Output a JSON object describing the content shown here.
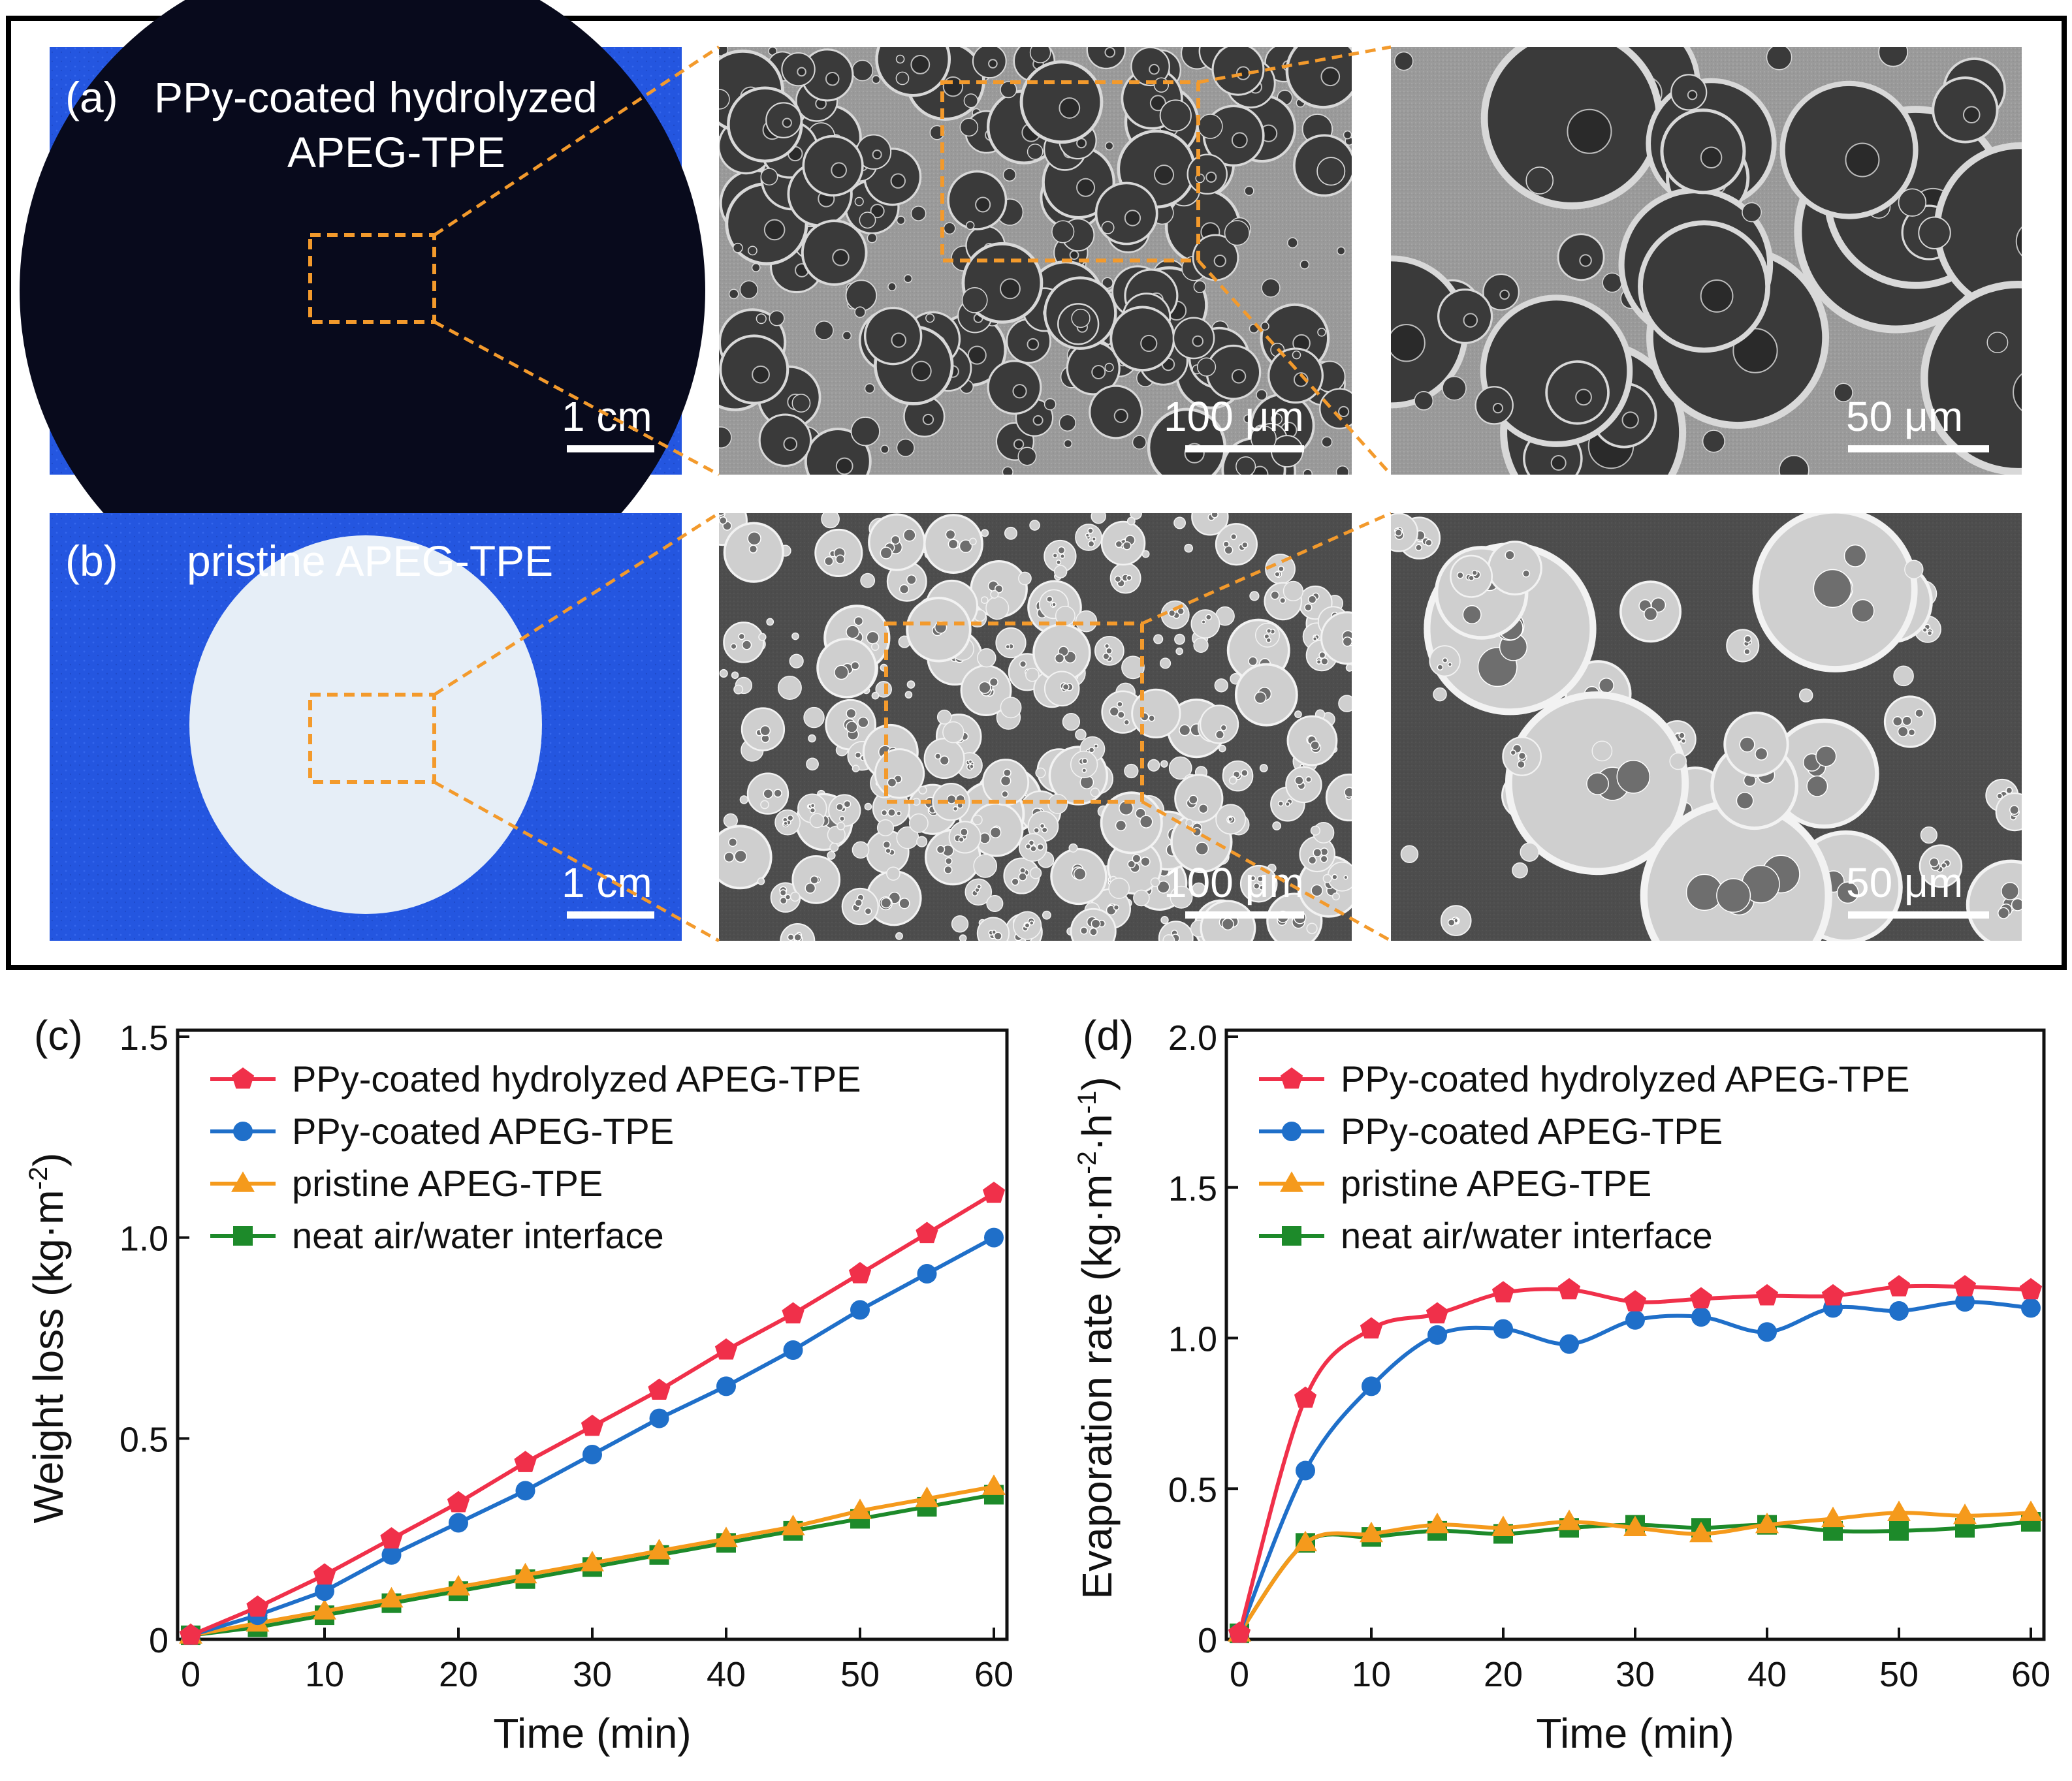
{
  "top_panels": {
    "a": {
      "label": "(a)",
      "title_line1": "PPy-coated hydrolyzed",
      "title_line2": "APEG-TPE",
      "scales": [
        "1 cm",
        "100 μm",
        "50 μm"
      ]
    },
    "b": {
      "label": "(b)",
      "title": "pristine APEG-TPE",
      "scales": [
        "1 cm",
        "100 μm",
        "50 μm"
      ]
    }
  },
  "colors": {
    "blue_bg": "#2456e0",
    "dark_disk": "#080a1c",
    "light_disk": "#e6eef7",
    "zoom": "#f39a2c",
    "sem_light": "#9e9e9e",
    "sem_dark": "#4a4a4a",
    "red": "#f0304a",
    "blue": "#1f6fc9",
    "orange": "#f59a1c",
    "green": "#1d8a2a"
  },
  "chart_data": [
    {
      "panel": "(c)",
      "type": "line",
      "xlabel": "Time (min)",
      "ylabel_main": "Weight loss (kg·m",
      "ylabel_sup": "-2",
      "ylabel_end": ")",
      "xlim": [
        0,
        60
      ],
      "ylim": [
        0,
        1.5
      ],
      "xticks": [
        0,
        10,
        20,
        30,
        40,
        50,
        60
      ],
      "yticks": [
        0,
        0.5,
        1.0,
        1.5
      ],
      "ytick_labels": [
        "0",
        "0.5",
        "1.0",
        "1.5"
      ],
      "x": [
        0,
        5,
        10,
        15,
        20,
        25,
        30,
        35,
        40,
        45,
        50,
        55,
        60
      ],
      "legend_position": "top-left",
      "series": [
        {
          "name": "PPy-coated hydrolyzed APEG-TPE",
          "color": "red",
          "marker": "pentagon",
          "values": [
            0.01,
            0.08,
            0.16,
            0.25,
            0.34,
            0.44,
            0.53,
            0.62,
            0.72,
            0.81,
            0.91,
            1.01,
            1.11
          ]
        },
        {
          "name": "PPy-coated APEG-TPE",
          "color": "blue",
          "marker": "circle",
          "values": [
            0.01,
            0.06,
            0.12,
            0.21,
            0.29,
            0.37,
            0.46,
            0.55,
            0.63,
            0.72,
            0.82,
            0.91,
            1.0
          ]
        },
        {
          "name": "pristine APEG-TPE",
          "color": "orange",
          "marker": "triangle",
          "values": [
            0.01,
            0.04,
            0.07,
            0.1,
            0.13,
            0.16,
            0.19,
            0.22,
            0.25,
            0.28,
            0.32,
            0.35,
            0.38
          ]
        },
        {
          "name": "neat air/water interface",
          "color": "green",
          "marker": "square",
          "values": [
            0.01,
            0.03,
            0.06,
            0.09,
            0.12,
            0.15,
            0.18,
            0.21,
            0.24,
            0.27,
            0.3,
            0.33,
            0.36
          ]
        }
      ]
    },
    {
      "panel": "(d)",
      "type": "line",
      "xlabel": "Time (min)",
      "ylabel_main": "Evaporation rate (kg·m",
      "ylabel_sup1": "-2",
      "ylabel_mid": "·h",
      "ylabel_sup2": "-1",
      "ylabel_end": ")",
      "xlim": [
        0,
        60
      ],
      "ylim": [
        0,
        2.0
      ],
      "xticks": [
        0,
        10,
        20,
        30,
        40,
        50,
        60
      ],
      "yticks": [
        0,
        0.5,
        1.0,
        1.5,
        2.0
      ],
      "ytick_labels": [
        "0",
        "0.5",
        "1.0",
        "1.5",
        "2.0"
      ],
      "x": [
        0,
        5,
        10,
        15,
        20,
        25,
        30,
        35,
        40,
        45,
        50,
        55,
        60
      ],
      "legend_position": "top-left",
      "series": [
        {
          "name": "PPy-coated hydrolyzed APEG-TPE",
          "color": "red",
          "marker": "pentagon",
          "values": [
            0.02,
            0.8,
            1.03,
            1.08,
            1.15,
            1.16,
            1.12,
            1.13,
            1.14,
            1.14,
            1.17,
            1.17,
            1.16
          ]
        },
        {
          "name": "PPy-coated APEG-TPE",
          "color": "blue",
          "marker": "circle",
          "values": [
            0.02,
            0.56,
            0.84,
            1.01,
            1.03,
            0.98,
            1.06,
            1.07,
            1.02,
            1.1,
            1.09,
            1.12,
            1.1
          ]
        },
        {
          "name": "pristine APEG-TPE",
          "color": "orange",
          "marker": "triangle",
          "values": [
            0.02,
            0.32,
            0.35,
            0.38,
            0.37,
            0.39,
            0.37,
            0.35,
            0.38,
            0.4,
            0.42,
            0.41,
            0.42
          ]
        },
        {
          "name": "neat air/water interface",
          "color": "green",
          "marker": "square",
          "values": [
            0.02,
            0.32,
            0.34,
            0.36,
            0.35,
            0.37,
            0.38,
            0.37,
            0.38,
            0.36,
            0.36,
            0.37,
            0.39
          ]
        }
      ]
    }
  ]
}
